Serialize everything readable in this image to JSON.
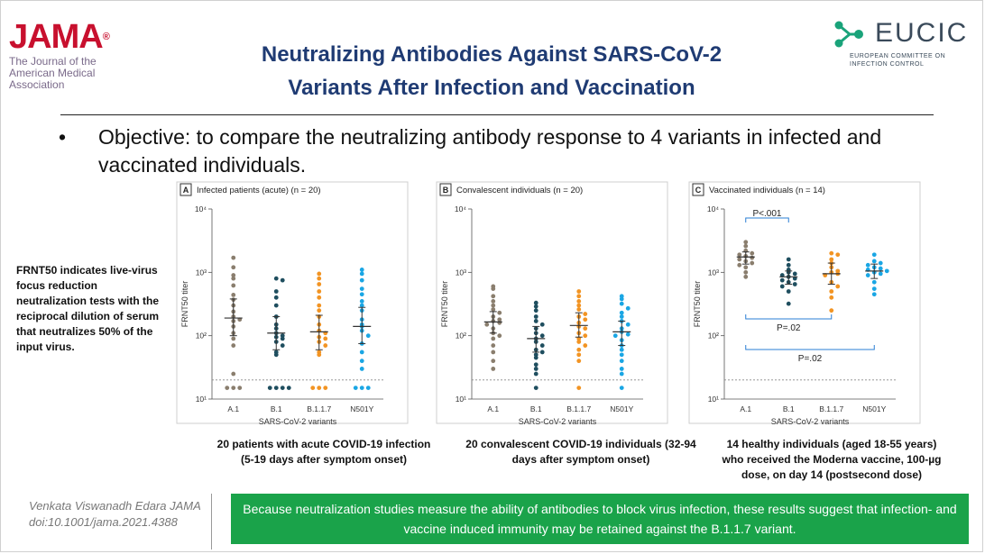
{
  "header": {
    "journal_word": "JAMA",
    "journal_reg": "®",
    "journal_sub": "The Journal of the American Medical Association",
    "title_line1": "Neutralizing Antibodies Against SARS-CoV-2",
    "title_line2": "Variants After Infection and Vaccination",
    "eucic_word": "EUCIC",
    "eucic_sub": "EUROPEAN COMMITTEE ON INFECTION CONTROL"
  },
  "objective": {
    "bullet": "•",
    "text": "Objective: to compare the neutralizing antibody response to 4 variants in infected and vaccinated individuals."
  },
  "side_note": "FRNT50 indicates live-virus focus reduction neutralization tests with the reciprocal dilution of serum that neutralizes 50% of the input virus.",
  "captions": [
    "20 patients with acute COVID-19 infection (5-19 days after symptom onset)",
    "20 convalescent COVID-19 individuals (32-94 days after symptom onset)",
    "14 healthy individuals (aged 18-55 years) who received the Moderna vaccine, 100-µg dose, on day 14 (postsecond dose)"
  ],
  "citation": {
    "line1": "Venkata Viswanadh Edara JAMA",
    "line2": "doi:10.1001/jama.2021.4388"
  },
  "conclusion": "Because neutralization studies measure the ability of antibodies to block virus infection, these results suggest that infection- and vaccine induced immunity may be retained against the B.1.1.7 variant.",
  "colors": {
    "title": "#1f3b73",
    "jama_red": "#c8102e",
    "eucic_green": "#1aa37a",
    "conclusion_bg": "#1aa34a",
    "series": [
      "#8a7e6e",
      "#1f4e5f",
      "#f29423",
      "#1aa6e4"
    ]
  },
  "chart_data": [
    {
      "type": "scatter",
      "panel_letter": "A",
      "title": "Infected patients (acute) (n = 20)",
      "xlabel": "SARS-CoV-2 variants",
      "ylabel": "FRNT50 titer",
      "y_scale": "log",
      "ylim": [
        10,
        10000
      ],
      "yticks": [
        "10¹",
        "10²",
        "10³",
        "10⁴"
      ],
      "categories": [
        "A.1",
        "B.1",
        "B.1.1.7",
        "N501Y"
      ],
      "detection_limit": 20,
      "series": [
        {
          "values": [
            1700,
            1200,
            900,
            800,
            620,
            440,
            370,
            300,
            240,
            200,
            180,
            170,
            140,
            110,
            90,
            70,
            25,
            15,
            15,
            15
          ],
          "median": 190,
          "ci": [
            100,
            380
          ]
        },
        {
          "values": [
            800,
            750,
            500,
            400,
            300,
            200,
            150,
            130,
            110,
            100,
            95,
            90,
            80,
            70,
            55,
            50,
            15,
            15,
            15,
            15
          ],
          "median": 110,
          "ci": [
            60,
            200
          ]
        },
        {
          "values": [
            950,
            800,
            650,
            500,
            400,
            300,
            250,
            200,
            150,
            120,
            110,
            95,
            90,
            80,
            70,
            55,
            50,
            15,
            15,
            15
          ],
          "median": 115,
          "ci": [
            60,
            210
          ]
        },
        {
          "values": [
            1100,
            950,
            750,
            550,
            450,
            350,
            300,
            250,
            180,
            150,
            140,
            120,
            100,
            75,
            55,
            40,
            30,
            15,
            15,
            15
          ],
          "median": 140,
          "ci": [
            75,
            280
          ]
        }
      ]
    },
    {
      "type": "scatter",
      "panel_letter": "B",
      "title": "Convalescent individuals (n = 20)",
      "xlabel": "SARS-CoV-2 variants",
      "ylabel": "FRNT50 titer",
      "y_scale": "log",
      "ylim": [
        10,
        10000
      ],
      "yticks": [
        "10¹",
        "10²",
        "10³",
        "10⁴"
      ],
      "categories": [
        "A.1",
        "B.1",
        "B.1.1.7",
        "N501Y"
      ],
      "detection_limit": 20,
      "series": [
        {
          "values": [
            600,
            550,
            420,
            350,
            300,
            260,
            230,
            200,
            180,
            170,
            160,
            150,
            130,
            110,
            100,
            90,
            70,
            55,
            40,
            30
          ],
          "median": 165,
          "ci": [
            110,
            240
          ]
        },
        {
          "values": [
            330,
            290,
            250,
            200,
            170,
            150,
            130,
            110,
            100,
            90,
            80,
            70,
            60,
            55,
            50,
            45,
            35,
            30,
            25,
            15
          ],
          "median": 90,
          "ci": [
            55,
            140
          ]
        },
        {
          "values": [
            500,
            420,
            350,
            300,
            260,
            220,
            200,
            180,
            160,
            140,
            130,
            110,
            100,
            90,
            80,
            70,
            60,
            50,
            40,
            15
          ],
          "median": 145,
          "ci": [
            95,
            230
          ]
        },
        {
          "values": [
            420,
            380,
            320,
            270,
            230,
            200,
            170,
            150,
            130,
            115,
            105,
            100,
            85,
            70,
            60,
            50,
            40,
            30,
            25,
            15
          ],
          "median": 115,
          "ci": [
            70,
            170
          ]
        }
      ]
    },
    {
      "type": "scatter",
      "panel_letter": "C",
      "title": "Vaccinated individuals (n = 14)",
      "xlabel": "SARS-CoV-2 variants",
      "ylabel": "FRNT50 titer",
      "y_scale": "log",
      "ylim": [
        10,
        10000
      ],
      "yticks": [
        "10¹",
        "10²",
        "10³",
        "10⁴"
      ],
      "categories": [
        "A.1",
        "B.1",
        "B.1.1.7",
        "N501Y"
      ],
      "detection_limit": 20,
      "series": [
        {
          "values": [
            3000,
            2600,
            2200,
            2000,
            1900,
            1800,
            1700,
            1600,
            1500,
            1400,
            1300,
            1200,
            1000,
            850
          ],
          "median": 1750,
          "ci": [
            1350,
            2100
          ]
        },
        {
          "values": [
            1600,
            1300,
            1100,
            1000,
            950,
            900,
            850,
            800,
            750,
            700,
            650,
            600,
            500,
            320
          ],
          "median": 850,
          "ci": [
            650,
            1050
          ]
        },
        {
          "values": [
            2000,
            1900,
            1600,
            1400,
            1200,
            1050,
            1000,
            950,
            900,
            700,
            600,
            500,
            400,
            250
          ],
          "median": 950,
          "ci": [
            650,
            1400
          ]
        },
        {
          "values": [
            1900,
            1500,
            1400,
            1300,
            1200,
            1150,
            1100,
            1050,
            1000,
            950,
            900,
            700,
            550,
            450
          ],
          "median": 1050,
          "ci": [
            800,
            1350
          ]
        }
      ],
      "annotations": [
        {
          "label": "P<.001",
          "from": "A.1",
          "to": "B.1",
          "position": "top"
        },
        {
          "label": "P=.02",
          "from": "A.1",
          "to": "B.1.1.7",
          "position": "bottom"
        },
        {
          "label": "P=.02",
          "from": "A.1",
          "to": "N501Y",
          "position": "bottom"
        }
      ]
    }
  ]
}
